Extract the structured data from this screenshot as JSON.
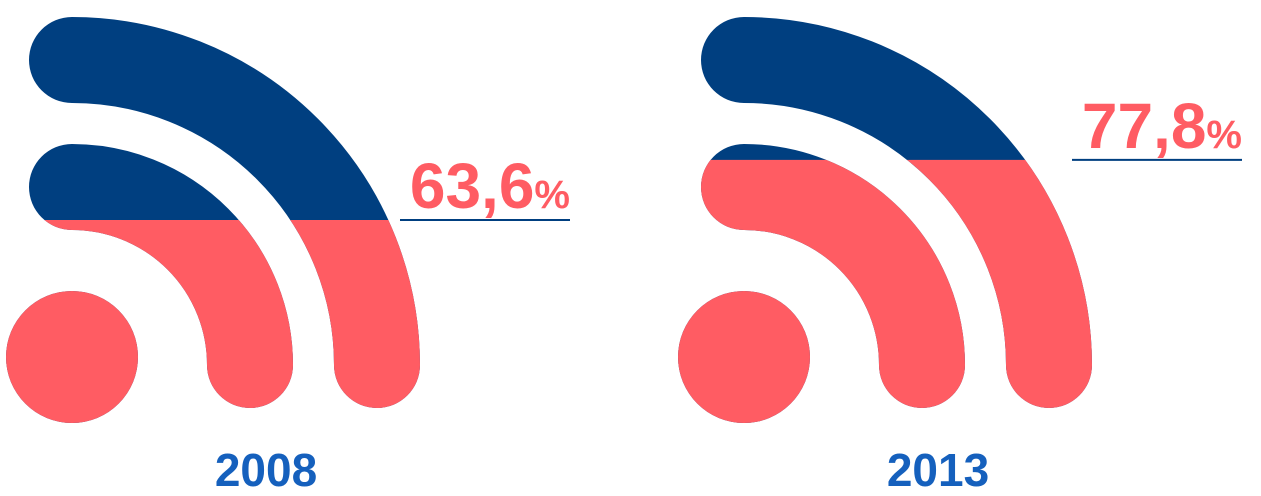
{
  "chart_data": {
    "type": "pictogram",
    "categories": [
      "2008",
      "2013"
    ],
    "values": [
      63.6,
      77.8
    ],
    "value_labels": [
      "63,6%",
      "77,8%"
    ],
    "color": "#ff5c63",
    "empty_color": "#003f80",
    "label_color": "#1560bd"
  }
}
